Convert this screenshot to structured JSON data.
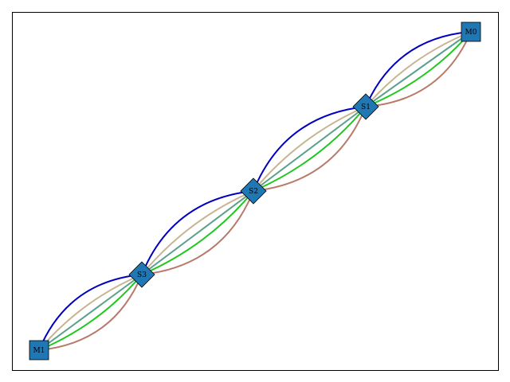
{
  "nodes": [
    {
      "id": "M0",
      "label": "M0",
      "shape": "square"
    },
    {
      "id": "S1",
      "label": "S1",
      "shape": "diamond"
    },
    {
      "id": "S2",
      "label": "S2",
      "shape": "diamond"
    },
    {
      "id": "S3",
      "label": "S3",
      "shape": "diamond"
    },
    {
      "id": "M1",
      "label": "M1",
      "shape": "square"
    }
  ],
  "links": [
    {
      "from": "M0",
      "to": "S1"
    },
    {
      "from": "S1",
      "to": "S2"
    },
    {
      "from": "S2",
      "to": "S3"
    },
    {
      "from": "S3",
      "to": "M1"
    }
  ],
  "link_colors": [
    "#b87a6a",
    "#1fc71f",
    "#5aa08a",
    "#c8b490",
    "#0000c0"
  ],
  "node_color": "#1f77b4",
  "frame_color": "#000000"
}
